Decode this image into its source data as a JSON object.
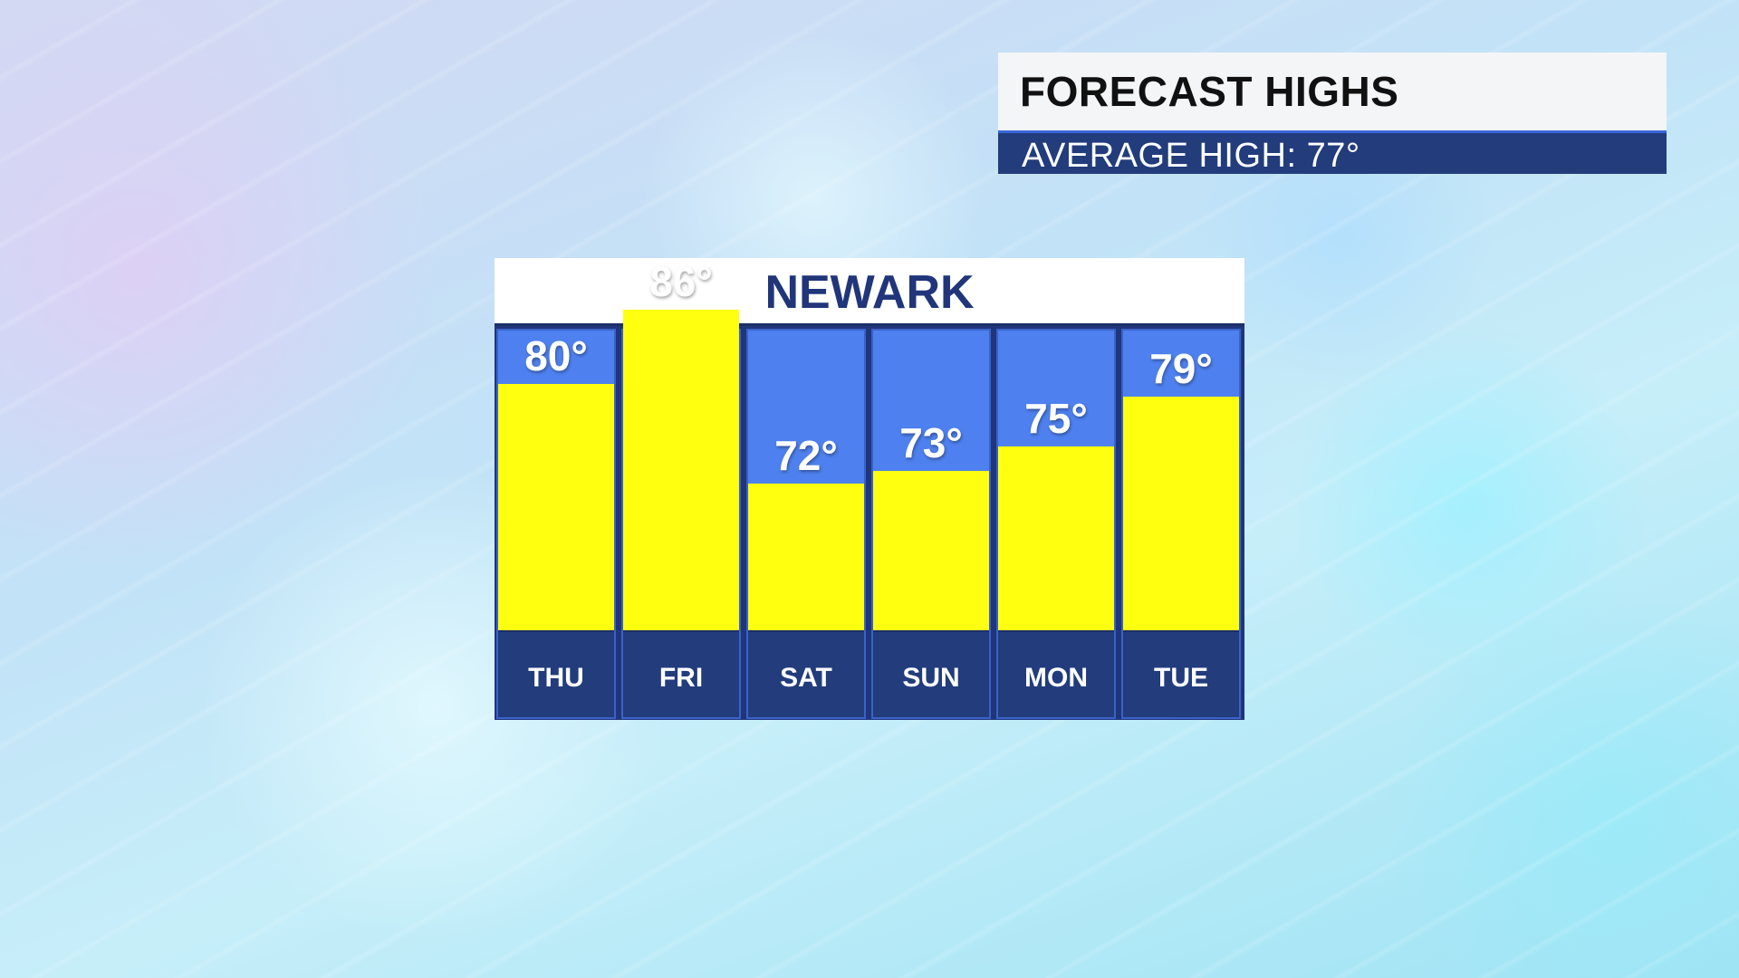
{
  "header": {
    "title": "FORECAST HIGHS",
    "subtitle": "AVERAGE HIGH:  77°"
  },
  "chart_data": {
    "type": "bar",
    "title": "NEWARK",
    "categories": [
      "THU",
      "FRI",
      "SAT",
      "SUN",
      "MON",
      "TUE"
    ],
    "values": [
      80,
      86,
      72,
      73,
      75,
      79
    ],
    "value_labels": [
      "80°",
      "86°",
      "72°",
      "73°",
      "75°",
      "79°"
    ],
    "unit": "°",
    "grid": false,
    "legend": "none",
    "colors": {
      "bar": "#ffff10",
      "column_background": "#4e81ef",
      "day_label_background": "#223c7c",
      "title_text": "#20357a"
    }
  }
}
